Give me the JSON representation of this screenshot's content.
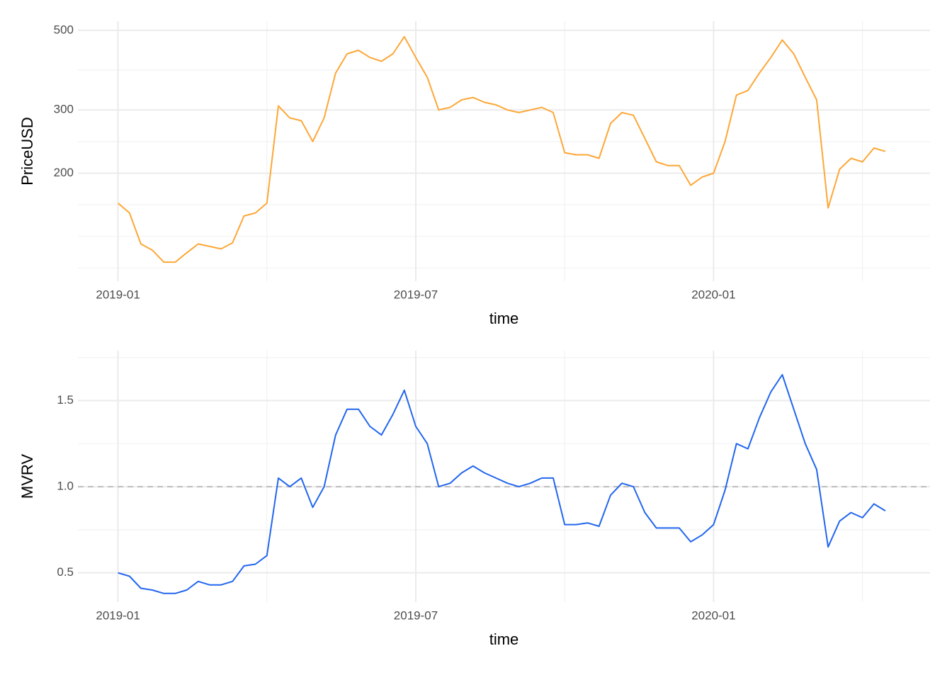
{
  "chart_data": [
    {
      "type": "line",
      "y_label": "PriceUSD",
      "x_label": "time",
      "log_y": true,
      "grid": true,
      "color": "#fda737",
      "x": [
        "2019-01",
        null,
        null,
        null,
        null,
        null,
        null,
        null,
        null,
        null,
        null,
        null,
        null,
        null,
        null,
        null,
        null,
        null,
        null,
        null,
        null,
        null,
        null,
        null,
        null,
        null,
        "2019-07",
        null,
        null,
        null,
        null,
        null,
        null,
        null,
        null,
        null,
        null,
        null,
        null,
        null,
        null,
        null,
        null,
        null,
        null,
        null,
        null,
        null,
        null,
        null,
        null,
        null,
        "2020-01",
        null,
        null,
        null,
        null,
        null,
        null,
        null,
        null,
        null,
        null,
        null,
        null,
        null,
        null,
        null
      ],
      "values": [
        165,
        155,
        127,
        122,
        113,
        113,
        120,
        127,
        125,
        123,
        128,
        152,
        155,
        165,
        308,
        285,
        280,
        245,
        285,
        380,
        430,
        440,
        420,
        410,
        430,
        480,
        420,
        370,
        300,
        305,
        320,
        325,
        315,
        310,
        300,
        295,
        300,
        305,
        295,
        228,
        225,
        225,
        220,
        275,
        295,
        290,
        250,
        215,
        210,
        210,
        185,
        195,
        200,
        245,
        330,
        340,
        380,
        420,
        470,
        430,
        370,
        320,
        160,
        205,
        220,
        215,
        235,
        230
      ],
      "ylim": [
        100,
        530
      ],
      "yticks": [
        200,
        300,
        500
      ]
    },
    {
      "type": "line",
      "y_label": "MVRV",
      "x_label": "time",
      "log_y": false,
      "grid": true,
      "color": "#2266ee",
      "hline": 1,
      "x": [
        "2019-01",
        null,
        null,
        null,
        null,
        null,
        null,
        null,
        null,
        null,
        null,
        null,
        null,
        null,
        null,
        null,
        null,
        null,
        null,
        null,
        null,
        null,
        null,
        null,
        null,
        null,
        "2019-07",
        null,
        null,
        null,
        null,
        null,
        null,
        null,
        null,
        null,
        null,
        null,
        null,
        null,
        null,
        null,
        null,
        null,
        null,
        null,
        null,
        null,
        null,
        null,
        null,
        null,
        "2020-01",
        null,
        null,
        null,
        null,
        null,
        null,
        null,
        null,
        null,
        null,
        null,
        null,
        null,
        null,
        null
      ],
      "values": [
        0.5,
        0.48,
        0.41,
        0.4,
        0.38,
        0.38,
        0.4,
        0.45,
        0.43,
        0.43,
        0.45,
        0.54,
        0.55,
        0.6,
        1.05,
        1.0,
        1.05,
        0.88,
        1.0,
        1.3,
        1.45,
        1.45,
        1.35,
        1.3,
        1.42,
        1.56,
        1.35,
        1.25,
        1.0,
        1.02,
        1.08,
        1.12,
        1.08,
        1.05,
        1.02,
        1.0,
        1.02,
        1.05,
        1.05,
        0.78,
        0.78,
        0.79,
        0.77,
        0.95,
        1.02,
        1.0,
        0.85,
        0.76,
        0.76,
        0.76,
        0.68,
        0.72,
        0.78,
        0.98,
        1.25,
        1.22,
        1.4,
        1.55,
        1.65,
        1.45,
        1.25,
        1.1,
        0.65,
        0.8,
        0.85,
        0.82,
        0.9,
        0.86
      ],
      "ylim": [
        0.33,
        1.79
      ],
      "yticks": [
        0.5,
        {
          "value": 1,
          "label": "1.0"
        },
        1.5
      ]
    }
  ]
}
